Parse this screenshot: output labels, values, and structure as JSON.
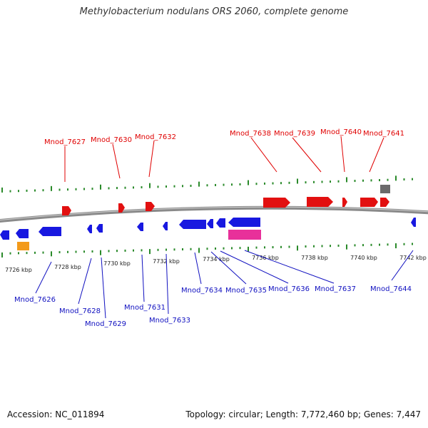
{
  "title": "Methylobacterium nodulans ORS 2060, complete genome",
  "footer": {
    "accession": "Accession: NC_011894",
    "summary": "Topology: circular; Length: 7,772,460 bp; Genes: 7,447"
  },
  "colors": {
    "forward_gene": "#e21010",
    "reverse_gene": "#1818e0",
    "backbone": "#8a8a8a",
    "tick": "#2a8a2a",
    "orange_feature": "#f39a1a",
    "magenta_feature": "#e8309a",
    "gray_feature": "#6a6a6a"
  },
  "scale_labels": [
    "7726 kbp",
    "7728 kbp",
    "7730 kbp",
    "7732 kbp",
    "7734 kbp",
    "7736 kbp",
    "7738 kbp",
    "7740 kbp",
    "7742 kbp"
  ],
  "forward_labels": [
    "Mnod_7627",
    "Mnod_7630",
    "Mnod_7632",
    "Mnod_7638",
    "Mnod_7639",
    "Mnod_7640",
    "Mnod_7641"
  ],
  "reverse_labels": [
    "Mnod_7626",
    "Mnod_7628",
    "Mnod_7629",
    "Mnod_7631",
    "Mnod_7633",
    "Mnod_7634",
    "Mnod_7635",
    "Mnod_7636",
    "Mnod_7637",
    "Mnod_7644"
  ]
}
